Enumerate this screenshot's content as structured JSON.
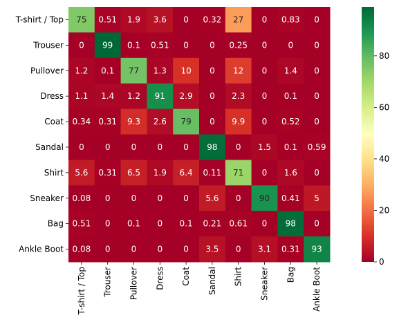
{
  "chart_data": {
    "type": "heatmap",
    "title": "",
    "xlabel": "",
    "ylabel": "",
    "rows": [
      "T-shirt / Top",
      "Trouser",
      "Pullover",
      "Dress",
      "Coat",
      "Sandal",
      "Shirt",
      "Sneaker",
      "Bag",
      "Ankle Boot"
    ],
    "columns": [
      "T-shirt / Top",
      "Trouser",
      "Pullover",
      "Dress",
      "Coat",
      "Sandal",
      "Shirt",
      "Sneaker",
      "Bag",
      "Ankle Boot"
    ],
    "values": [
      [
        75,
        0.51,
        1.9,
        3.6,
        0,
        0.32,
        27,
        0,
        0.83,
        0
      ],
      [
        0,
        99,
        0.1,
        0.51,
        0,
        0,
        0.25,
        0,
        0,
        0
      ],
      [
        1.2,
        0.1,
        77,
        1.3,
        10,
        0,
        12,
        0,
        1.4,
        0
      ],
      [
        1.1,
        1.4,
        1.2,
        91,
        2.9,
        0,
        2.3,
        0,
        0.1,
        0
      ],
      [
        0.34,
        0.31,
        9.3,
        2.6,
        79,
        0,
        9.9,
        0,
        0.52,
        0
      ],
      [
        0,
        0,
        0,
        0,
        0,
        98,
        0,
        1.5,
        0.1,
        0.59
      ],
      [
        5.6,
        0.31,
        6.5,
        1.9,
        6.4,
        0.11,
        71,
        0,
        1.6,
        0
      ],
      [
        0.08,
        0,
        0,
        0,
        0,
        5.6,
        0,
        90,
        0.41,
        5
      ],
      [
        0.51,
        0,
        0.1,
        0,
        0.1,
        0.21,
        0.61,
        0,
        98,
        0
      ],
      [
        0.08,
        0,
        0,
        0,
        0,
        3.5,
        0,
        3.1,
        0.31,
        93
      ]
    ],
    "colormap": "RdYlGn",
    "colorbar": {
      "min": 0,
      "max": 99,
      "ticks": [
        "0",
        "20",
        "40",
        "60",
        "80"
      ],
      "tick_values": [
        0,
        20,
        40,
        60,
        80
      ]
    },
    "annotations": true
  }
}
